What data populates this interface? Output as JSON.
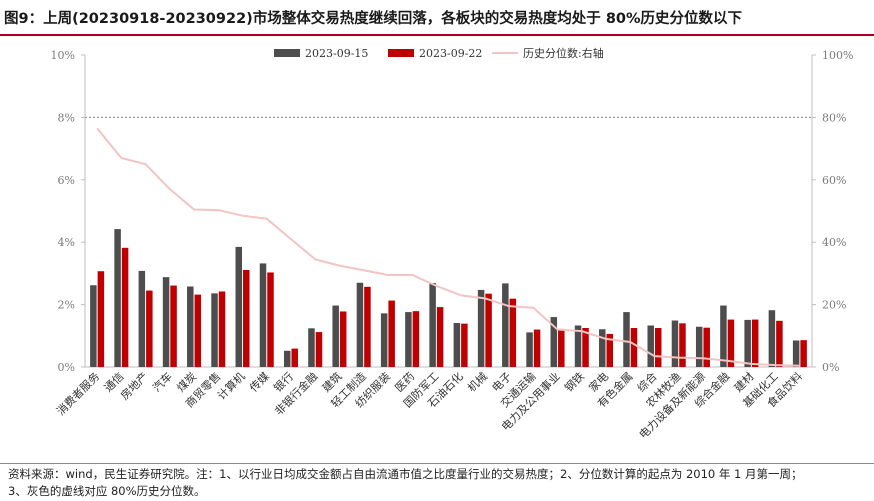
{
  "title": "图9：上周(20230918-20230922)市场整体交易热度继续回落，各板块的交易热度均处于 80%历史分位数以下",
  "footer": {
    "line1": "资料来源：wind，民生证券研究院。注：1、以行业日均成交金额占自由流通市值之比度量行业的交易热度；2、分位数计算的起点为 2010 年 1 月第一周；",
    "line2": "3、灰色的虚线对应 80%历史分位数。"
  },
  "chart_data": {
    "type": "bar",
    "categories": [
      "消费者服务",
      "通信",
      "房地产",
      "汽车",
      "煤炭",
      "商贸零售",
      "计算机",
      "传媒",
      "银行",
      "非银行金融",
      "建筑",
      "轻工制造",
      "纺织服装",
      "医药",
      "国防军工",
      "石油石化",
      "机械",
      "电子",
      "交通运输",
      "电力及公用事业",
      "钢铁",
      "家电",
      "有色金属",
      "综合",
      "农林牧渔",
      "电力设备及新能源",
      "综合金融",
      "建材",
      "基础化工",
      "食品饮料"
    ],
    "series": [
      {
        "name": "2023-09-15",
        "type": "bar",
        "axis": "left",
        "color": "#4d4d4d",
        "values": [
          2.62,
          4.42,
          3.08,
          2.88,
          2.58,
          2.36,
          3.85,
          3.32,
          0.52,
          1.24,
          1.97,
          2.7,
          1.72,
          1.76,
          2.69,
          1.41,
          2.47,
          2.68,
          1.11,
          1.6,
          1.33,
          1.21,
          1.76,
          1.33,
          1.49,
          1.29,
          1.97,
          1.51,
          1.82,
          0.85
        ]
      },
      {
        "name": "2023-09-22",
        "type": "bar",
        "axis": "left",
        "color": "#c00000",
        "values": [
          3.07,
          3.82,
          2.45,
          2.61,
          2.32,
          2.42,
          3.11,
          3.03,
          0.59,
          1.12,
          1.78,
          2.57,
          2.13,
          1.79,
          1.92,
          1.39,
          2.35,
          2.19,
          1.2,
          1.22,
          1.25,
          1.06,
          1.25,
          1.25,
          1.4,
          1.26,
          1.52,
          1.52,
          1.48,
          0.86
        ]
      },
      {
        "name": "历史分位数:右轴",
        "type": "line",
        "axis": "right",
        "color": "#f2c4c4",
        "values": [
          76.5,
          67.0,
          65.0,
          57.0,
          50.5,
          50.3,
          48.5,
          47.5,
          41.0,
          34.5,
          32.5,
          31.0,
          29.5,
          29.5,
          26.0,
          23.0,
          22.0,
          19.5,
          19.0,
          12.0,
          11.5,
          9.0,
          8.0,
          3.5,
          3.0,
          2.8,
          2.0,
          1.0,
          0.6,
          0.4
        ]
      }
    ],
    "y_left": {
      "min": 0,
      "max": 10,
      "ticks": [
        "0%",
        "2%",
        "4%",
        "6%",
        "8%",
        "10%"
      ]
    },
    "y_right": {
      "min": 0,
      "max": 100,
      "ticks": [
        "0%",
        "20%",
        "40%",
        "60%",
        "80%",
        "100%"
      ]
    },
    "reference_line": {
      "axis": "left",
      "value": 8,
      "style": "dashed",
      "color": "#999999"
    },
    "legend_position": "top-center"
  }
}
